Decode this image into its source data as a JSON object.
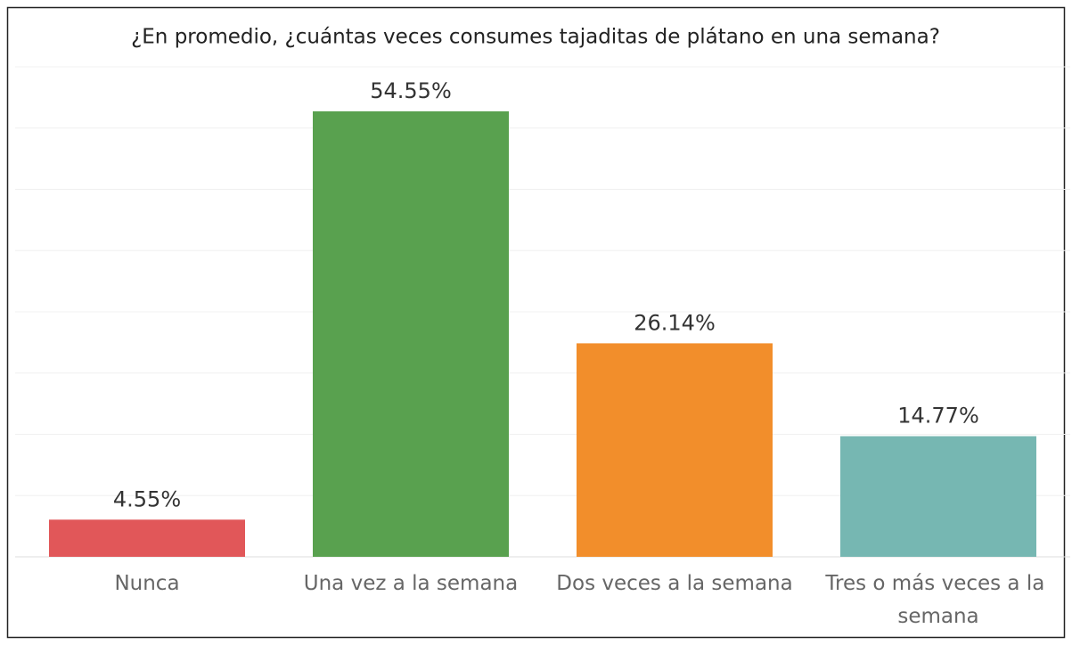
{
  "chart_data": {
    "type": "bar",
    "title": "¿En promedio, ¿cuántas veces consumes tajaditas de plátano en una semana?",
    "categories": [
      "Nunca",
      "Una vez a la semana",
      "Dos veces a la semana",
      "Tres o más veces a la semana"
    ],
    "values": [
      4.55,
      54.55,
      26.14,
      14.77
    ],
    "value_labels": [
      "4.55%",
      "54.55%",
      "26.14%",
      "14.77%"
    ],
    "colors": [
      "#e15759",
      "#59a14f",
      "#f28e2b",
      "#76b7b2"
    ],
    "ylim": [
      0,
      60
    ],
    "yticks": [
      0,
      7.5,
      15,
      22.5,
      30,
      37.5,
      45,
      52.5,
      60
    ],
    "grid": true
  }
}
